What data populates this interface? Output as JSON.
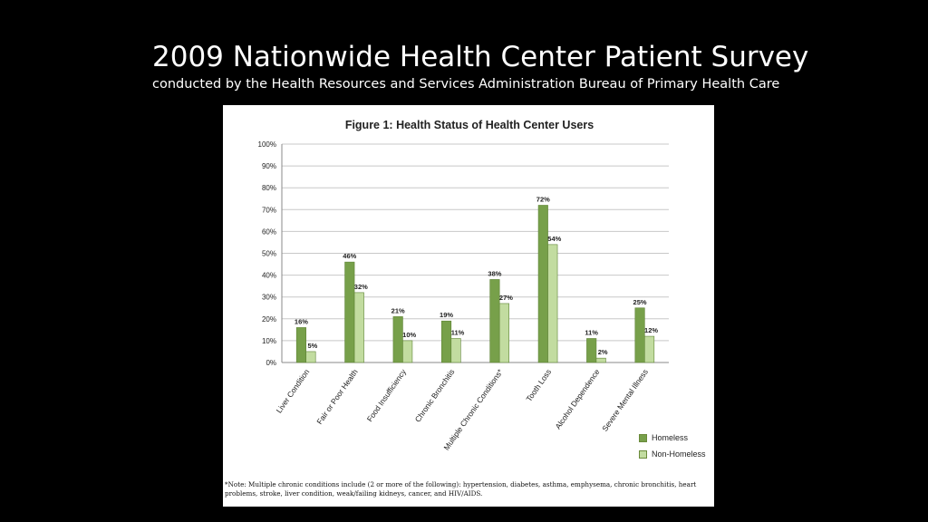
{
  "slide": {
    "title": "2009 Nationwide Health Center Patient Survey",
    "subtitle": "conducted by the Health Resources and Services Administration Bureau of Primary Health Care"
  },
  "figure": {
    "note": "*Note: Multiple chronic conditions include (2 or more of the following): hypertension, diabetes, asthma, emphysema, chronic bronchitis, heart problems, stroke, liver condition, weak/failing kidneys, cancer, and HIV/AIDS."
  },
  "colors": {
    "homeless": "#77a04a",
    "non_homeless": "#c2dca0",
    "gridline": "#c8c8c8"
  },
  "chart_data": {
    "type": "bar",
    "title": "Figure 1: Health Status of Health Center Users",
    "xlabel": "",
    "ylabel": "",
    "ylim": [
      0,
      100
    ],
    "yticks": [
      "0%",
      "10%",
      "20%",
      "30%",
      "40%",
      "50%",
      "60%",
      "70%",
      "80%",
      "90%",
      "100%"
    ],
    "grid": true,
    "legend_position": "bottom-right",
    "categories": [
      "Liver Condition",
      "Fair or Poor Health",
      "Food Insufficiency",
      "Chronic Bronchitis",
      "Multiple Chronic Conditions*",
      "Tooth Loss",
      "Alcohol Dependence",
      "Severe Mental Illness"
    ],
    "series": [
      {
        "name": "Homeless",
        "values": [
          16,
          46,
          21,
          19,
          38,
          72,
          11,
          25
        ],
        "labels": [
          "16%",
          "46%",
          "21%",
          "19%",
          "38%",
          "72%",
          "11%",
          "25%"
        ]
      },
      {
        "name": "Non-Homeless",
        "values": [
          5,
          32,
          10,
          11,
          27,
          54,
          2,
          12
        ],
        "labels": [
          "5%",
          "32%",
          "10%",
          "11%",
          "27%",
          "54%",
          "2%",
          "12%"
        ]
      }
    ]
  }
}
